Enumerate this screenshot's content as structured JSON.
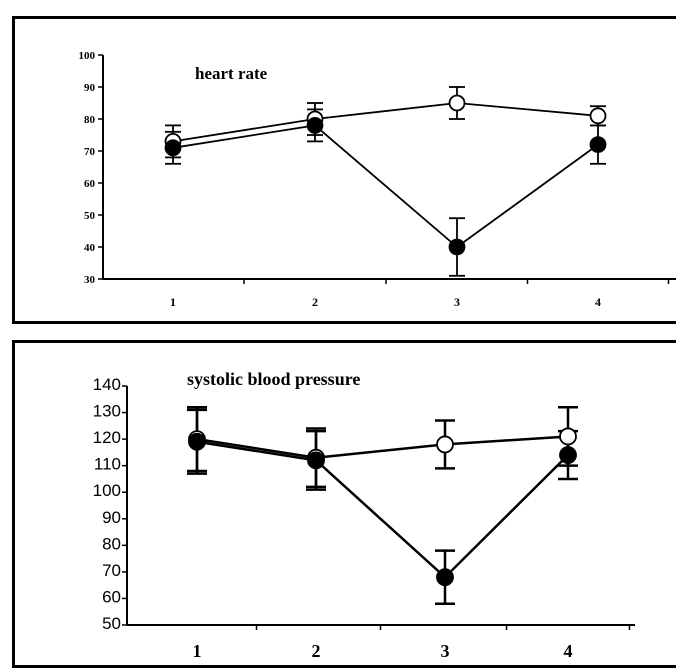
{
  "chart_data": [
    {
      "type": "line",
      "title": "heart rate",
      "xlabel": "",
      "ylabel": "",
      "categories": [
        "1",
        "2",
        "3",
        "4"
      ],
      "ylim": [
        30,
        100
      ],
      "yticks": [
        30,
        40,
        50,
        60,
        70,
        80,
        90,
        100
      ],
      "grid": false,
      "series": [
        {
          "marker": "open-circle",
          "color": "#000000",
          "values": [
            73,
            80,
            85,
            81
          ],
          "errors": [
            5,
            5,
            5,
            3
          ]
        },
        {
          "marker": "filled-circle",
          "color": "#000000",
          "values": [
            71,
            78,
            40,
            72
          ],
          "errors": [
            5,
            5,
            9,
            6
          ]
        }
      ]
    },
    {
      "type": "line",
      "title": "systolic blood pressure",
      "xlabel": "",
      "ylabel": "",
      "categories": [
        "1",
        "2",
        "3",
        "4"
      ],
      "ylim": [
        50,
        140
      ],
      "yticks": [
        50,
        60,
        70,
        80,
        90,
        100,
        110,
        120,
        130,
        140
      ],
      "grid": false,
      "series": [
        {
          "marker": "open-circle",
          "color": "#000000",
          "values": [
            120,
            113,
            118,
            121
          ],
          "errors": [
            12,
            11,
            9,
            11
          ]
        },
        {
          "marker": "filled-circle",
          "color": "#000000",
          "values": [
            119,
            112,
            68,
            114
          ],
          "errors": [
            12,
            11,
            10,
            9
          ]
        }
      ]
    }
  ]
}
